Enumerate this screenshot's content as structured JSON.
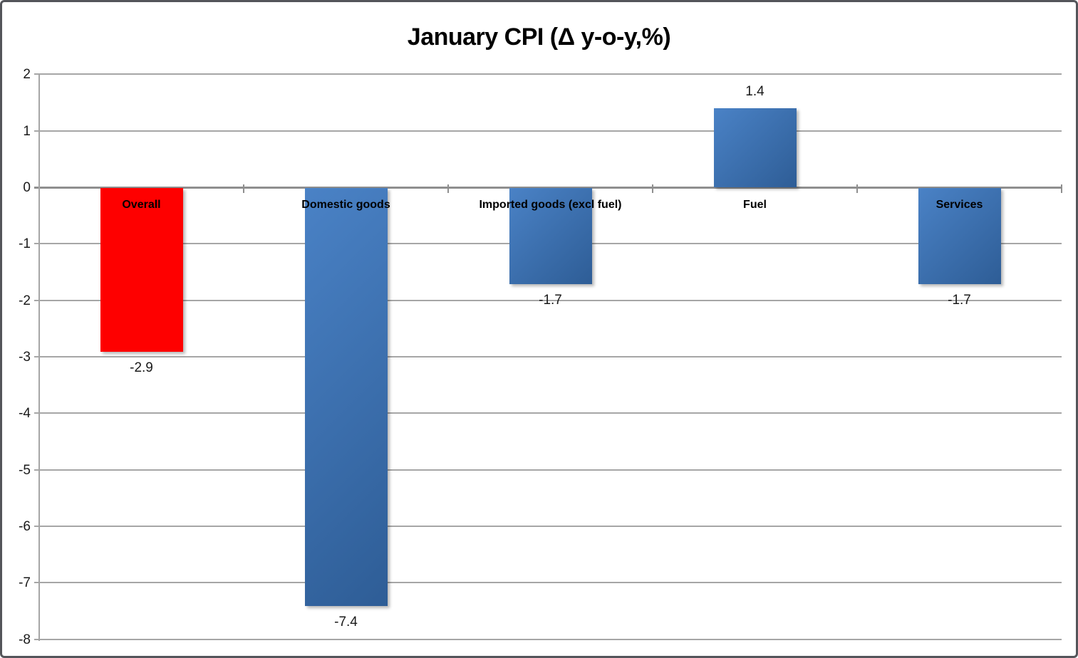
{
  "frame": {
    "border_color": "#54555a",
    "background": "#ffffff"
  },
  "chart_data": {
    "type": "bar",
    "title": "January CPI (Δ y-o-y,%)",
    "categories": [
      "Overall",
      "Domestic goods",
      "Imported goods (excl fuel)",
      "Fuel",
      "Services"
    ],
    "values": [
      -2.9,
      -7.4,
      -1.7,
      1.4,
      -1.7
    ],
    "data_labels": [
      "-2.9",
      "-7.4",
      "-1.7",
      "1.4",
      "-1.7"
    ],
    "bar_styles": [
      "highlight",
      "default",
      "default",
      "default",
      "default"
    ],
    "colors": {
      "highlight": "#fe0000",
      "default_top": "#4a82c6",
      "default_bottom": "#2e5d96",
      "gridline": "#a6a6a6",
      "zero_line": "#8f8f8f",
      "axis_line": "#a6a6a6",
      "label_text": "#1a1a1a"
    },
    "xlabel": "",
    "ylabel": "",
    "ylim": [
      -8,
      2
    ],
    "y_ticks": [
      2,
      1,
      0,
      -1,
      -2,
      -3,
      -4,
      -5,
      -6,
      -7,
      -8
    ],
    "grid": true,
    "legend": "none",
    "category_label_position": "at_zero_axis",
    "value_label_position": "outside_end"
  }
}
